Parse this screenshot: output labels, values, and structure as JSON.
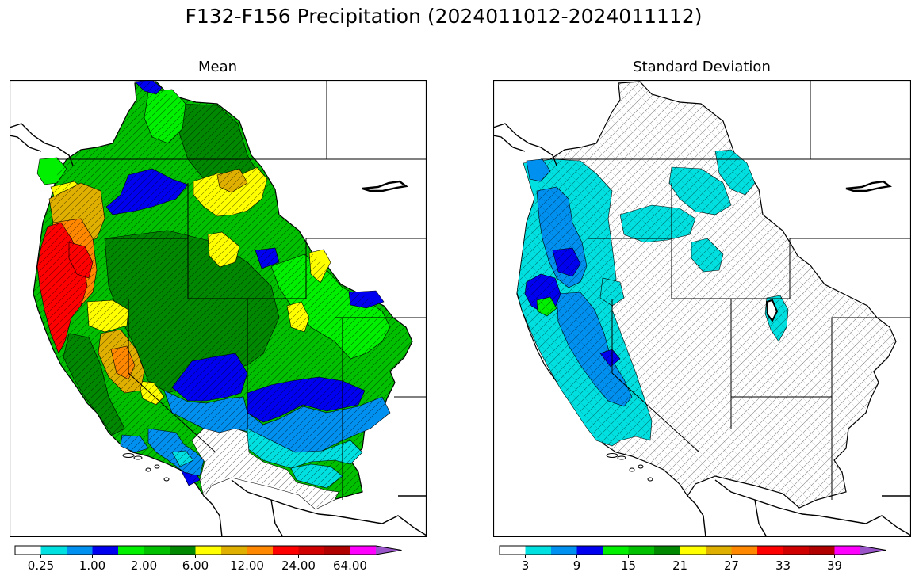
{
  "figure_title": "F132-F156 Precipitation (2024011012-2024011112)",
  "panels": {
    "mean": {
      "title": "Mean",
      "colorbar": {
        "colors": [
          "#ffffff",
          "#00e0e0",
          "#0090f0",
          "#0000f0",
          "#00f000",
          "#00c000",
          "#008800",
          "#ffff00",
          "#e0b000",
          "#ff8800",
          "#ff0000",
          "#d00000",
          "#b00000",
          "#ff00ff",
          "#9955c8"
        ],
        "tick_labels": [
          "0.25",
          "1.00",
          "2.00",
          "6.00",
          "12.00",
          "24.00",
          "64.00"
        ]
      },
      "regions": {
        "heavy_coast": "#ff0000",
        "orange_coast": "#ff8800",
        "gold": "#e0b000",
        "yellow": "#ffff00",
        "dark_green": "#008800",
        "green": "#00c000",
        "bright_green": "#00f000",
        "blue": "#0000f0",
        "light_blue": "#0090f0",
        "cyan": "#00e0e0"
      }
    },
    "std": {
      "title": "Standard Deviation",
      "colorbar": {
        "colors": [
          "#ffffff",
          "#00e0e0",
          "#0090f0",
          "#0000f0",
          "#00f000",
          "#00c000",
          "#008800",
          "#ffff00",
          "#e0b000",
          "#ff8800",
          "#ff0000",
          "#d00000",
          "#b00000",
          "#ff00ff",
          "#9955c8"
        ],
        "tick_labels": [
          "3",
          "9",
          "15",
          "21",
          "27",
          "33",
          "39"
        ]
      }
    }
  }
}
